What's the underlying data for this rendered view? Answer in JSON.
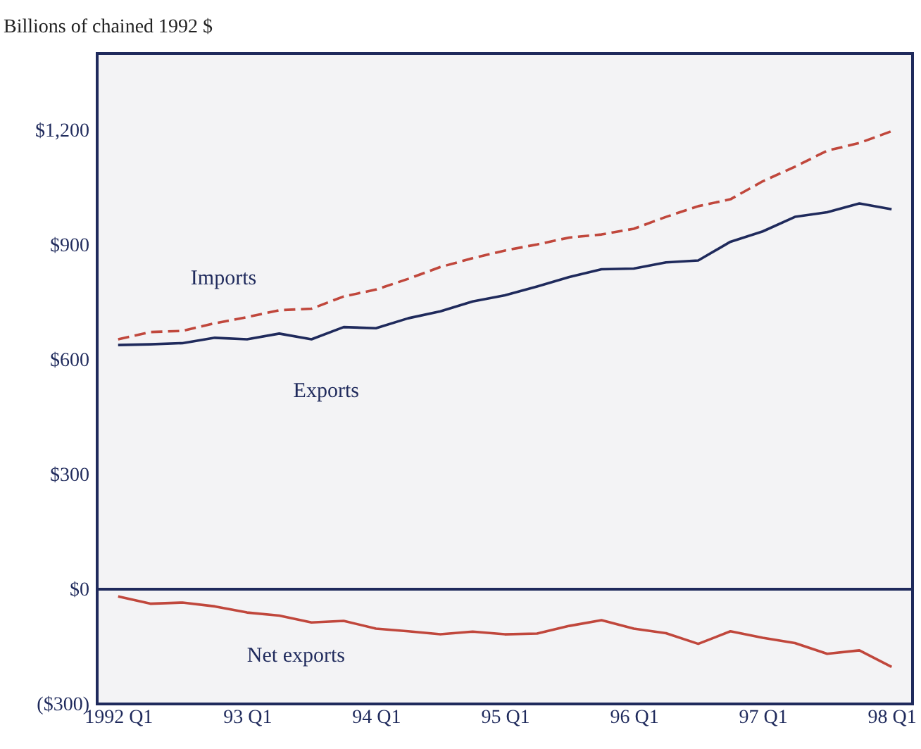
{
  "chart_data": {
    "type": "line",
    "ylabel": "Billions of chained 1992 $",
    "categories": [
      "1992 Q1",
      null,
      null,
      null,
      "93 Q1",
      null,
      null,
      null,
      "94 Q1",
      null,
      null,
      null,
      "95 Q1",
      null,
      null,
      null,
      "96 Q1",
      null,
      null,
      null,
      "97 Q1",
      null,
      null,
      null,
      "98 Q1"
    ],
    "series": [
      {
        "name": "Imports",
        "color": "#c0473c",
        "line_style": "dashed",
        "values": [
          653,
          672,
          675,
          695,
          711,
          729,
          733,
          765,
          783,
          811,
          842,
          865,
          885,
          901,
          919,
          927,
          942,
          973,
          1001,
          1019,
          1066,
          1104,
          1146,
          1166,
          1197
        ]
      },
      {
        "name": "Exports",
        "color": "#1f2a5c",
        "line_style": "solid",
        "values": [
          638,
          640,
          643,
          657,
          653,
          668,
          653,
          685,
          682,
          708,
          726,
          752,
          768,
          791,
          816,
          836,
          838,
          854,
          859,
          908,
          935,
          973,
          985,
          1008,
          993
        ]
      },
      {
        "name": "Net exports",
        "color": "#c0473c",
        "line_style": "solid",
        "values": [
          -19,
          -38,
          -35,
          -45,
          -61,
          -69,
          -87,
          -83,
          -103,
          -110,
          -118,
          -111,
          -118,
          -116,
          -96,
          -81,
          -103,
          -115,
          -143,
          -110,
          -127,
          -141,
          -169,
          -160,
          -203
        ]
      }
    ],
    "ylim": [
      -300,
      1400
    ],
    "yticks": [
      {
        "value": -300,
        "label": "($300)"
      },
      {
        "value": 0,
        "label": "$0"
      },
      {
        "value": 300,
        "label": "$300"
      },
      {
        "value": 600,
        "label": "$600"
      },
      {
        "value": 900,
        "label": "$900"
      },
      {
        "value": 1200,
        "label": "$1,200"
      }
    ],
    "ref_lines": [
      {
        "axis": "y",
        "value": 0,
        "color": "#1f2a5c"
      }
    ],
    "grid": false
  }
}
